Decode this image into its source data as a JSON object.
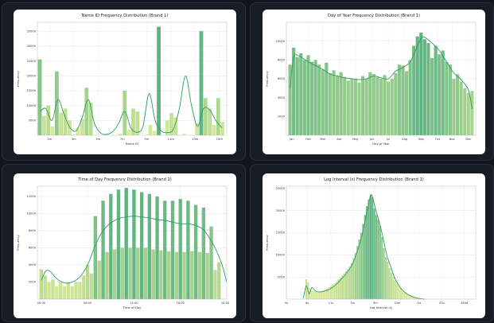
{
  "palette": {
    "bg": "#10141b",
    "frame": "#181d25",
    "kde": "#2e9e5e",
    "bar_low": "#e4ef9a",
    "bar_high": "#5fb383"
  },
  "chart_data": [
    {
      "type": "bar",
      "title": "Name ID Frequency Distribution (Brand 1)",
      "xlabel": "Name ID",
      "ylabel": "Frequency",
      "xlim": [
        0,
        15.6
      ],
      "ylim": [
        0,
        38000
      ],
      "x_ticks": [
        {
          "v": 1,
          "label": "1m"
        },
        {
          "v": 3,
          "label": "3m"
        },
        {
          "v": 5,
          "label": "5m"
        },
        {
          "v": 7,
          "label": "7m"
        },
        {
          "v": 9,
          "label": "9m"
        },
        {
          "v": 11,
          "label": "11m"
        },
        {
          "v": 13,
          "label": "13m"
        },
        {
          "v": 15,
          "label": "15m"
        }
      ],
      "y_ticks": [
        {
          "v": 5000,
          "label": "5000"
        },
        {
          "v": 10000,
          "label": "10000"
        },
        {
          "v": 15000,
          "label": "15000"
        },
        {
          "v": 20000,
          "label": "20000"
        },
        {
          "v": 25000,
          "label": "25000"
        },
        {
          "v": 30000,
          "label": "30000"
        },
        {
          "v": 35000,
          "label": "35000"
        }
      ],
      "bins_x": [
        0.2,
        0.55,
        0.9,
        1.25,
        1.6,
        1.95,
        2.3,
        2.65,
        3.0,
        3.35,
        3.7,
        4.05,
        4.4,
        4.75,
        5.1,
        5.45,
        5.8,
        6.15,
        6.5,
        6.85,
        7.2,
        7.55,
        7.9,
        8.25,
        8.6,
        8.95,
        9.3,
        9.65,
        10.0,
        10.35,
        10.7,
        11.05,
        11.4,
        11.75,
        12.1,
        12.45,
        12.8,
        13.15,
        13.5,
        13.85,
        14.2,
        14.55,
        14.9,
        15.25
      ],
      "bins_y": [
        25500,
        6500,
        10000,
        3000,
        21500,
        7500,
        9000,
        5000,
        0,
        2500,
        5500,
        16000,
        11000,
        0,
        0,
        0,
        0,
        0,
        0,
        500,
        15000,
        2000,
        9000,
        8000,
        0,
        0,
        3500,
        1500,
        36500,
        0,
        5000,
        7500,
        6000,
        0,
        500,
        0,
        0,
        4000,
        35000,
        12500,
        9000,
        3500,
        12500,
        4500
      ],
      "kde_x": [
        0.2,
        0.7,
        1.2,
        1.7,
        2.2,
        2.7,
        3.2,
        3.7,
        4.2,
        4.7,
        5.2,
        5.7,
        6.2,
        6.7,
        7.2,
        7.7,
        8.2,
        8.7,
        9.2,
        9.7,
        10.2,
        10.7,
        11.2,
        11.7,
        12.2,
        12.7,
        13.2,
        13.7,
        14.2,
        14.7,
        15.2
      ],
      "kde_y": [
        8000,
        9000,
        5000,
        12000,
        7000,
        2500,
        1500,
        6000,
        12000,
        4000,
        800,
        300,
        1200,
        4000,
        8000,
        2500,
        1000,
        3000,
        14000,
        5000,
        1500,
        900,
        2000,
        9000,
        20000,
        10000,
        3000,
        9000,
        8500,
        5000,
        2500
      ]
    },
    {
      "type": "bar",
      "title": "Day of Year Frequency Distribution (Brand 1)",
      "xlabel": "Day of Year",
      "ylabel": "Frequency",
      "xlim": [
        0,
        52
      ],
      "ylim": [
        0,
        12000
      ],
      "x_ticks": [
        {
          "v": 1.5,
          "label": "Jan"
        },
        {
          "v": 6,
          "label": "Feb"
        },
        {
          "v": 10,
          "label": "Mar"
        },
        {
          "v": 14.5,
          "label": "Apr"
        },
        {
          "v": 19,
          "label": "May"
        },
        {
          "v": 23.5,
          "label": "Jun"
        },
        {
          "v": 28,
          "label": "Jul"
        },
        {
          "v": 32.5,
          "label": "Aug"
        },
        {
          "v": 37,
          "label": "Sep"
        },
        {
          "v": 41.5,
          "label": "Oct"
        },
        {
          "v": 45.5,
          "label": "Nov"
        },
        {
          "v": 50,
          "label": "Dec"
        }
      ],
      "y_ticks": [
        {
          "v": 2000,
          "label": "2000"
        },
        {
          "v": 4000,
          "label": "4000"
        },
        {
          "v": 6000,
          "label": "6000"
        },
        {
          "v": 8000,
          "label": "8000"
        },
        {
          "v": 10000,
          "label": "10000"
        }
      ],
      "bins_x": [
        1,
        2,
        3,
        4,
        5,
        6,
        7,
        8,
        9,
        10,
        11,
        12,
        13,
        14,
        15,
        16,
        17,
        18,
        19,
        20,
        21,
        22,
        23,
        24,
        25,
        26,
        27,
        28,
        29,
        30,
        31,
        32,
        33,
        34,
        35,
        36,
        37,
        38,
        39,
        40,
        41,
        42,
        43,
        44,
        45,
        46,
        47,
        48,
        49,
        50,
        51
      ],
      "bins_y": [
        7500,
        9300,
        8300,
        8700,
        8000,
        8500,
        7800,
        8000,
        7500,
        7000,
        7700,
        6600,
        6900,
        6300,
        6700,
        6200,
        5800,
        6000,
        6000,
        5600,
        6300,
        6000,
        6700,
        6500,
        6200,
        6000,
        6400,
        5700,
        6000,
        6600,
        7500,
        7400,
        6800,
        8000,
        9500,
        10500,
        10900,
        10200,
        9800,
        8200,
        9500,
        8600,
        9000,
        7800,
        7500,
        6000,
        6500,
        5700,
        5000,
        4500,
        4700
      ],
      "kde_x": [
        1,
        2,
        3,
        4,
        6,
        8,
        10,
        12,
        14,
        16,
        18,
        20,
        22,
        24,
        26,
        28,
        30,
        32,
        34,
        36,
        37,
        38,
        40,
        42,
        44,
        46,
        48,
        50,
        51
      ],
      "kde_y": [
        5000,
        8300,
        8500,
        8300,
        7800,
        7400,
        7000,
        6500,
        6300,
        6100,
        6000,
        5900,
        6000,
        6300,
        6100,
        6000,
        6800,
        7200,
        7800,
        9500,
        10300,
        10400,
        9800,
        9000,
        7800,
        6600,
        5900,
        4800,
        2800
      ]
    },
    {
      "type": "bar",
      "title": "Time of Day Frequency Distribution (Brand 1)",
      "xlabel": "Time of Day",
      "ylabel": "Frequency",
      "xlim": [
        -0.5,
        24
      ],
      "ylim": [
        0,
        13200
      ],
      "x_ticks": [
        {
          "v": 0,
          "label": "00:00"
        },
        {
          "v": 6,
          "label": "06:00"
        },
        {
          "v": 12,
          "label": "12:00"
        },
        {
          "v": 18,
          "label": "18:00"
        },
        {
          "v": 23.8,
          "label": "24:00"
        }
      ],
      "y_ticks": [
        {
          "v": 2000,
          "label": "2000"
        },
        {
          "v": 4000,
          "label": "4000"
        },
        {
          "v": 6000,
          "label": "6000"
        },
        {
          "v": 8000,
          "label": "8000"
        },
        {
          "v": 10000,
          "label": "10000"
        },
        {
          "v": 12000,
          "label": "12000"
        }
      ],
      "bins_x": [
        0,
        0.5,
        1,
        1.5,
        2,
        2.5,
        3,
        3.5,
        4,
        4.5,
        5,
        5.5,
        6,
        6.5,
        7,
        7.5,
        8,
        8.5,
        9,
        9.5,
        10,
        10.5,
        11,
        11.5,
        12,
        12.5,
        13,
        13.5,
        14,
        14.5,
        15,
        15.5,
        16,
        16.5,
        17,
        17.5,
        18,
        18.5,
        19,
        19.5,
        20,
        20.5,
        21,
        21.5,
        22,
        22.5,
        23
      ],
      "bins_y": [
        3500,
        2800,
        2000,
        2300,
        1500,
        2000,
        1500,
        2000,
        1500,
        2000,
        2000,
        2800,
        4000,
        3000,
        9700,
        4500,
        11500,
        5500,
        12300,
        5800,
        12800,
        6000,
        13000,
        6000,
        12800,
        6000,
        12500,
        6000,
        12300,
        5800,
        12000,
        5700,
        11500,
        5600,
        11500,
        5500,
        11700,
        5500,
        11500,
        5600,
        11000,
        5500,
        10700,
        5400,
        8500,
        3400,
        4300
      ],
      "kde_x": [
        0,
        0.6,
        1.2,
        2,
        3,
        4,
        5,
        6,
        7,
        8,
        9,
        10,
        11,
        12,
        13,
        14,
        15,
        16,
        17,
        18,
        19,
        20,
        21,
        22,
        22.7,
        23.4,
        24
      ],
      "kde_y": [
        2200,
        3300,
        3200,
        2400,
        1900,
        2000,
        2600,
        4000,
        6300,
        8000,
        8900,
        9400,
        9600,
        9700,
        9600,
        9500,
        9300,
        9200,
        9000,
        8800,
        8800,
        8600,
        8100,
        6800,
        5600,
        4000,
        2000
      ]
    },
    {
      "type": "bar",
      "title": "Log Interval (s) Frequency Distribution (Brand 1)",
      "xlabel": "Log Interval (s)",
      "ylabel": "Frequency",
      "xlim": [
        0,
        10
      ],
      "ylim": [
        0,
        25500
      ],
      "x_ticks": [
        {
          "v": 0,
          "label": "0s"
        },
        {
          "v": 1.1,
          "label": "6s"
        },
        {
          "v": 2.35,
          "label": "11s"
        },
        {
          "v": 3.5,
          "label": "1m"
        },
        {
          "v": 4.7,
          "label": "3m"
        },
        {
          "v": 5.85,
          "label": "10m"
        },
        {
          "v": 7,
          "label": "1d"
        },
        {
          "v": 8.2,
          "label": "37d"
        },
        {
          "v": 9.4,
          "label": "440d"
        },
        {
          "v": 10.6,
          "label": "5015d"
        }
      ],
      "y_ticks": [
        {
          "v": 5000,
          "label": "5000"
        },
        {
          "v": 10000,
          "label": "10000"
        },
        {
          "v": 15000,
          "label": "15000"
        },
        {
          "v": 20000,
          "label": "20000"
        },
        {
          "v": 25000,
          "label": "25000"
        }
      ],
      "bins_x": [
        1.05,
        1.15,
        1.25,
        1.35,
        1.45,
        1.55,
        1.65,
        1.75,
        1.85,
        1.95,
        2.05,
        2.15,
        2.25,
        2.35,
        2.45,
        2.55,
        2.65,
        2.75,
        2.85,
        2.95,
        3.05,
        3.15,
        3.25,
        3.35,
        3.45,
        3.55,
        3.65,
        3.75,
        3.85,
        3.95,
        4.05,
        4.15,
        4.25,
        4.35,
        4.45,
        4.55,
        4.65,
        4.75,
        4.85,
        4.95,
        5.05,
        5.15,
        5.25,
        5.35,
        5.45,
        5.55,
        5.65,
        5.75,
        5.85,
        5.95,
        6.05,
        6.15,
        6.25,
        6.35,
        6.45,
        6.55,
        6.65,
        6.75,
        6.85,
        6.95,
        7.05,
        7.15
      ],
      "bins_y": [
        4500,
        3800,
        2500,
        1800,
        2000,
        1700,
        1500,
        1800,
        1900,
        2000,
        2200,
        2400,
        2700,
        3000,
        3300,
        3600,
        4000,
        4500,
        4900,
        5300,
        5800,
        6300,
        6800,
        7400,
        8200,
        9200,
        10500,
        12000,
        13500,
        15000,
        17000,
        19000,
        21000,
        22500,
        23500,
        23000,
        20500,
        19000,
        18000,
        16500,
        14000,
        11500,
        9500,
        8500,
        7000,
        6000,
        5000,
        4200,
        3500,
        3000,
        2500,
        2000,
        1600,
        1300,
        1000,
        800,
        600,
        450,
        300,
        200,
        150,
        100
      ],
      "kde_x": [
        0.9,
        1.05,
        1.2,
        1.35,
        1.55,
        1.75,
        2,
        2.3,
        2.6,
        2.9,
        3.2,
        3.5,
        3.8,
        4.0,
        4.2,
        4.35,
        4.45,
        4.55,
        4.7,
        4.9,
        5.1,
        5.3,
        5.5,
        5.7,
        5.9,
        6.1,
        6.4,
        6.7,
        7.0,
        7.3
      ],
      "kde_y": [
        200,
        3000,
        1200,
        2600,
        1800,
        1600,
        1800,
        2300,
        3200,
        4500,
        6000,
        8000,
        11500,
        14500,
        18500,
        21500,
        23500,
        23000,
        20500,
        17500,
        14000,
        10000,
        7500,
        5000,
        3400,
        2200,
        1100,
        500,
        150,
        0
      ]
    }
  ]
}
